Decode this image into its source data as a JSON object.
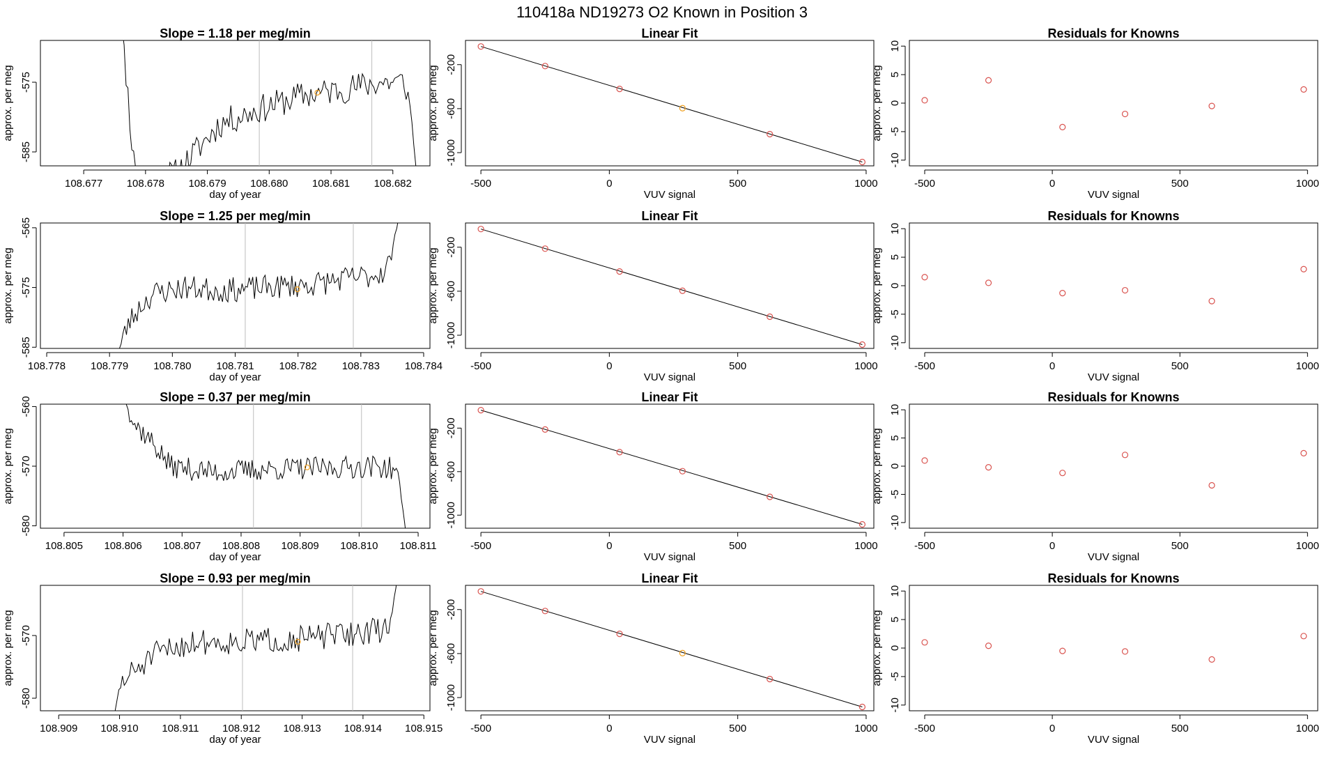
{
  "figure": {
    "title": "110418a     ND19273   O2 Known in Position  3"
  },
  "colors": {
    "point_red": "#d9534f",
    "point_orange": "#f0a020",
    "trace": "#000000",
    "vline": "#bdbdbd"
  },
  "chart_data": [
    {
      "type": "line",
      "row": 1,
      "col": 1,
      "title": "Slope =  1.18  per meg/min",
      "xlabel": "day of year",
      "ylabel": "approx. per meg",
      "xlim": [
        108.6763,
        108.6826
      ],
      "ylim": [
        -587,
        -569
      ],
      "xticks": [
        108.677,
        108.678,
        108.679,
        108.68,
        108.681,
        108.682
      ],
      "xtick_labels": [
        "108.677",
        "108.678",
        "108.679",
        "108.680",
        "108.681",
        "108.682"
      ],
      "yticks": [
        -585,
        -575
      ],
      "ytick_labels": [
        "-585",
        "-575"
      ],
      "vlines": [
        108.67984,
        108.68166
      ],
      "trace": {
        "start": 108.6775,
        "end": 108.6824,
        "n": 160,
        "anchors": [
          [
            108.6775,
            -558
          ],
          [
            108.6777,
            -575
          ],
          [
            108.6778,
            -586
          ],
          [
            108.6781,
            -589
          ],
          [
            108.6785,
            -588
          ],
          [
            108.6788,
            -585
          ],
          [
            108.6792,
            -581
          ],
          [
            108.6798,
            -579
          ],
          [
            108.6805,
            -577
          ],
          [
            108.6812,
            -576
          ],
          [
            108.6818,
            -575
          ],
          [
            108.6822,
            -575
          ],
          [
            108.6823,
            -580
          ],
          [
            108.6824,
            -590
          ]
        ],
        "noise": 1.3,
        "seed": 11
      },
      "marker": {
        "x": 108.68078,
        "y": -576.5
      }
    },
    {
      "type": "scatter",
      "row": 1,
      "col": 2,
      "title": "Linear Fit",
      "xlabel": "VUV signal",
      "ylabel": "approx. per meg",
      "xlim": [
        -560,
        1030
      ],
      "ylim": [
        -1120,
        20
      ],
      "xticks": [
        -500,
        0,
        500,
        1000
      ],
      "xtick_labels": [
        "-500",
        "0",
        "500",
        "1000"
      ],
      "yticks": [
        -200,
        -600,
        -1000
      ],
      "ytick_labels": [
        "-200",
        "-600",
        "-1000"
      ],
      "fit": {
        "x": [
          -500,
          985
        ],
        "y": [
          -35,
          -1085
        ]
      },
      "points": [
        {
          "x": -500,
          "y": -35,
          "c": "red"
        },
        {
          "x": -250,
          "y": -213,
          "c": "red"
        },
        {
          "x": 40,
          "y": -421,
          "c": "red"
        },
        {
          "x": 285,
          "y": -596,
          "c": "orange"
        },
        {
          "x": 625,
          "y": -832,
          "c": "red"
        },
        {
          "x": 985,
          "y": -1085,
          "c": "red"
        }
      ]
    },
    {
      "type": "scatter",
      "row": 1,
      "col": 3,
      "title": "Residuals for Knowns",
      "xlabel": "VUV signal",
      "ylabel": "approx. per meg",
      "xlim": [
        -560,
        1040
      ],
      "ylim": [
        -11,
        11
      ],
      "xticks": [
        -500,
        0,
        500,
        1000
      ],
      "xtick_labels": [
        "-500",
        "0",
        "500",
        "1000"
      ],
      "yticks": [
        -10,
        -5,
        0,
        5,
        10
      ],
      "ytick_labels": [
        "-10",
        "-5",
        "0",
        "5",
        "10"
      ],
      "points": [
        {
          "x": -500,
          "y": 0.5,
          "c": "red"
        },
        {
          "x": -250,
          "y": 4.0,
          "c": "red"
        },
        {
          "x": 40,
          "y": -4.2,
          "c": "red"
        },
        {
          "x": 285,
          "y": -1.9,
          "c": "red"
        },
        {
          "x": 625,
          "y": -0.5,
          "c": "red"
        },
        {
          "x": 985,
          "y": 2.4,
          "c": "red"
        }
      ]
    },
    {
      "type": "line",
      "row": 2,
      "col": 1,
      "title": "Slope =  1.25  per meg/min",
      "xlabel": "day of year",
      "ylabel": "approx. per meg",
      "xlim": [
        108.7779,
        108.7841
      ],
      "ylim": [
        -585.2,
        -564.2
      ],
      "xticks": [
        108.778,
        108.779,
        108.78,
        108.781,
        108.782,
        108.783,
        108.784
      ],
      "xtick_labels": [
        "108.778",
        "108.779",
        "108.780",
        "108.781",
        "108.782",
        "108.783",
        "108.784"
      ],
      "yticks": [
        -585,
        -575,
        -565
      ],
      "ytick_labels": [
        "-585",
        "-575",
        "-565"
      ],
      "vlines": [
        108.78116,
        108.78288
      ],
      "trace": {
        "start": 108.7791,
        "end": 108.7836,
        "n": 160,
        "anchors": [
          [
            108.7791,
            -587
          ],
          [
            108.7793,
            -581
          ],
          [
            108.7795,
            -578
          ],
          [
            108.7797,
            -576
          ],
          [
            108.7802,
            -575
          ],
          [
            108.7808,
            -575.5
          ],
          [
            108.7815,
            -575
          ],
          [
            108.7822,
            -574.5
          ],
          [
            108.7828,
            -573.5
          ],
          [
            108.7832,
            -573
          ],
          [
            108.7834,
            -572
          ],
          [
            108.7835,
            -569
          ],
          [
            108.7836,
            -563
          ]
        ],
        "noise": 1.3,
        "seed": 23
      },
      "marker": {
        "x": 108.78199,
        "y": -575.3
      }
    },
    {
      "type": "scatter",
      "row": 2,
      "col": 2,
      "title": "Linear Fit",
      "xlabel": "VUV signal",
      "ylabel": "approx. per meg",
      "xlim": [
        -560,
        1030
      ],
      "ylim": [
        -1120,
        20
      ],
      "xticks": [
        -500,
        0,
        500,
        1000
      ],
      "xtick_labels": [
        "-500",
        "0",
        "500",
        "1000"
      ],
      "yticks": [
        -200,
        -600,
        -1000
      ],
      "ytick_labels": [
        "-200",
        "-600",
        "-1000"
      ],
      "fit": {
        "x": [
          -500,
          985
        ],
        "y": [
          -35,
          -1085
        ]
      },
      "points": [
        {
          "x": -500,
          "y": -35,
          "c": "red"
        },
        {
          "x": -250,
          "y": -213,
          "c": "red"
        },
        {
          "x": 40,
          "y": -421,
          "c": "red"
        },
        {
          "x": 285,
          "y": -596,
          "c": "red"
        },
        {
          "x": 625,
          "y": -832,
          "c": "red"
        },
        {
          "x": 985,
          "y": -1085,
          "c": "red"
        }
      ]
    },
    {
      "type": "scatter",
      "row": 2,
      "col": 3,
      "title": "Residuals for Knowns",
      "xlabel": "VUV signal",
      "ylabel": "approx. per meg",
      "xlim": [
        -560,
        1040
      ],
      "ylim": [
        -11,
        11
      ],
      "xticks": [
        -500,
        0,
        500,
        1000
      ],
      "xtick_labels": [
        "-500",
        "0",
        "500",
        "1000"
      ],
      "yticks": [
        -10,
        -5,
        0,
        5,
        10
      ],
      "ytick_labels": [
        "-10",
        "-5",
        "0",
        "5",
        "10"
      ],
      "points": [
        {
          "x": -500,
          "y": 1.5,
          "c": "red"
        },
        {
          "x": -250,
          "y": 0.5,
          "c": "red"
        },
        {
          "x": 40,
          "y": -1.3,
          "c": "red"
        },
        {
          "x": 285,
          "y": -0.8,
          "c": "red"
        },
        {
          "x": 625,
          "y": -2.7,
          "c": "red"
        },
        {
          "x": 985,
          "y": 2.9,
          "c": "red"
        }
      ]
    },
    {
      "type": "line",
      "row": 3,
      "col": 1,
      "title": "Slope =  0.37  per meg/min",
      "xlabel": "day of year",
      "ylabel": "approx. per meg",
      "xlim": [
        108.8046,
        108.8112
      ],
      "ylim": [
        -580.4,
        -559.6
      ],
      "xticks": [
        108.805,
        108.806,
        108.807,
        108.808,
        108.809,
        108.81,
        108.811
      ],
      "xtick_labels": [
        "108.805",
        "108.806",
        "108.807",
        "108.808",
        "108.809",
        "108.810",
        "108.811"
      ],
      "yticks": [
        -580,
        -570,
        -560
      ],
      "ytick_labels": [
        "-580",
        "-570",
        "-560"
      ],
      "vlines": [
        108.80821,
        108.81004
      ],
      "trace": {
        "start": 108.806,
        "end": 108.8108,
        "n": 170,
        "anchors": [
          [
            108.806,
            -558
          ],
          [
            108.8062,
            -563
          ],
          [
            108.8065,
            -566
          ],
          [
            108.8068,
            -570
          ],
          [
            108.8075,
            -571
          ],
          [
            108.8085,
            -570.5
          ],
          [
            108.8095,
            -570.3
          ],
          [
            108.8103,
            -570
          ],
          [
            108.8106,
            -570.5
          ],
          [
            108.8107,
            -574
          ],
          [
            108.8108,
            -582
          ]
        ],
        "noise": 1.2,
        "seed": 37
      },
      "marker": {
        "x": 108.80912,
        "y": -570.2
      }
    },
    {
      "type": "scatter",
      "row": 3,
      "col": 2,
      "title": "Linear Fit",
      "xlabel": "VUV signal",
      "ylabel": "approx. per meg",
      "xlim": [
        -560,
        1030
      ],
      "ylim": [
        -1120,
        20
      ],
      "xticks": [
        -500,
        0,
        500,
        1000
      ],
      "xtick_labels": [
        "-500",
        "0",
        "500",
        "1000"
      ],
      "yticks": [
        -200,
        -600,
        -1000
      ],
      "ytick_labels": [
        "-200",
        "-600",
        "-1000"
      ],
      "fit": {
        "x": [
          -500,
          985
        ],
        "y": [
          -35,
          -1085
        ]
      },
      "points": [
        {
          "x": -500,
          "y": -35,
          "c": "red"
        },
        {
          "x": -250,
          "y": -213,
          "c": "red"
        },
        {
          "x": 40,
          "y": -421,
          "c": "red"
        },
        {
          "x": 285,
          "y": -596,
          "c": "red"
        },
        {
          "x": 625,
          "y": -832,
          "c": "red"
        },
        {
          "x": 985,
          "y": -1085,
          "c": "red"
        }
      ]
    },
    {
      "type": "scatter",
      "row": 3,
      "col": 3,
      "title": "Residuals for Knowns",
      "xlabel": "VUV signal",
      "ylabel": "approx. per meg",
      "xlim": [
        -560,
        1040
      ],
      "ylim": [
        -11,
        11
      ],
      "xticks": [
        -500,
        0,
        500,
        1000
      ],
      "xtick_labels": [
        "-500",
        "0",
        "500",
        "1000"
      ],
      "yticks": [
        -10,
        -5,
        0,
        5,
        10
      ],
      "ytick_labels": [
        "-10",
        "-5",
        "0",
        "5",
        "10"
      ],
      "points": [
        {
          "x": -500,
          "y": 1.0,
          "c": "red"
        },
        {
          "x": -250,
          "y": -0.2,
          "c": "red"
        },
        {
          "x": 40,
          "y": -1.2,
          "c": "red"
        },
        {
          "x": 285,
          "y": 2.0,
          "c": "red"
        },
        {
          "x": 625,
          "y": -3.4,
          "c": "red"
        },
        {
          "x": 985,
          "y": 2.3,
          "c": "red"
        }
      ]
    },
    {
      "type": "line",
      "row": 4,
      "col": 1,
      "title": "Slope =  0.93  per meg/min",
      "xlabel": "day of year",
      "ylabel": "approx. per meg",
      "xlim": [
        108.9087,
        108.9151
      ],
      "ylim": [
        -582,
        -562
      ],
      "xticks": [
        108.909,
        108.91,
        108.911,
        108.912,
        108.913,
        108.914,
        108.915
      ],
      "xtick_labels": [
        "108.909",
        "108.910",
        "108.911",
        "108.912",
        "108.913",
        "108.914",
        "108.915"
      ],
      "yticks": [
        -580,
        -570
      ],
      "ytick_labels": [
        "-580",
        "-570"
      ],
      "vlines": [
        108.91202,
        108.91383
      ],
      "trace": {
        "start": 108.9099,
        "end": 108.9146,
        "n": 160,
        "anchors": [
          [
            108.9099,
            -584
          ],
          [
            108.91,
            -578
          ],
          [
            108.9102,
            -576
          ],
          [
            108.9106,
            -573
          ],
          [
            108.9112,
            -571
          ],
          [
            108.912,
            -571
          ],
          [
            108.913,
            -570.5
          ],
          [
            108.914,
            -569.5
          ],
          [
            108.9144,
            -569
          ],
          [
            108.9145,
            -565
          ],
          [
            108.9146,
            -558
          ]
        ],
        "noise": 1.3,
        "seed": 51
      },
      "marker": {
        "x": 108.91293,
        "y": -571.0
      }
    },
    {
      "type": "scatter",
      "row": 4,
      "col": 2,
      "title": "Linear Fit",
      "xlabel": "VUV signal",
      "ylabel": "approx. per meg",
      "xlim": [
        -560,
        1030
      ],
      "ylim": [
        -1120,
        20
      ],
      "xticks": [
        -500,
        0,
        500,
        1000
      ],
      "xtick_labels": [
        "-500",
        "0",
        "500",
        "1000"
      ],
      "yticks": [
        -200,
        -600,
        -1000
      ],
      "ytick_labels": [
        "-200",
        "-600",
        "-1000"
      ],
      "fit": {
        "x": [
          -500,
          985
        ],
        "y": [
          -35,
          -1085
        ]
      },
      "points": [
        {
          "x": -500,
          "y": -35,
          "c": "red"
        },
        {
          "x": -250,
          "y": -213,
          "c": "red"
        },
        {
          "x": 40,
          "y": -421,
          "c": "red"
        },
        {
          "x": 285,
          "y": -596,
          "c": "orange"
        },
        {
          "x": 625,
          "y": -832,
          "c": "red"
        },
        {
          "x": 985,
          "y": -1085,
          "c": "red"
        }
      ]
    },
    {
      "type": "scatter",
      "row": 4,
      "col": 3,
      "title": "Residuals for Knowns",
      "xlabel": "VUV signal",
      "ylabel": "approx. per meg",
      "xlim": [
        -560,
        1040
      ],
      "ylim": [
        -11,
        11
      ],
      "xticks": [
        -500,
        0,
        500,
        1000
      ],
      "xtick_labels": [
        "-500",
        "0",
        "500",
        "1000"
      ],
      "yticks": [
        -10,
        -5,
        0,
        5,
        10
      ],
      "ytick_labels": [
        "-10",
        "-5",
        "0",
        "5",
        "10"
      ],
      "points": [
        {
          "x": -500,
          "y": 1.0,
          "c": "red"
        },
        {
          "x": -250,
          "y": 0.4,
          "c": "red"
        },
        {
          "x": 40,
          "y": -0.5,
          "c": "red"
        },
        {
          "x": 285,
          "y": -0.6,
          "c": "red"
        },
        {
          "x": 625,
          "y": -2.0,
          "c": "red"
        },
        {
          "x": 985,
          "y": 2.1,
          "c": "red"
        }
      ]
    }
  ]
}
